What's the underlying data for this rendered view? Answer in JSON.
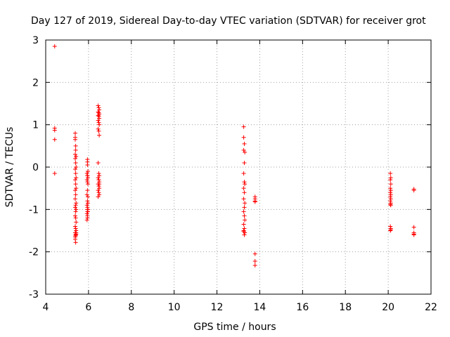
{
  "chart_data": {
    "type": "scatter",
    "title": "Day 127 of 2019, Sidereal Day-to-day VTEC variation (SDTVAR) for receiver grot",
    "xlabel": "GPS time / hours",
    "ylabel": "SDTVAR / TECUs",
    "xlim": [
      4,
      22
    ],
    "ylim": [
      -3,
      3
    ],
    "xticks": [
      4,
      6,
      8,
      10,
      12,
      14,
      16,
      18,
      20,
      22
    ],
    "yticks": [
      -3,
      -2,
      -1,
      0,
      1,
      2,
      3
    ],
    "xtick_labels": [
      "4",
      "6",
      "8",
      "10",
      "12",
      "14",
      "16",
      "18",
      "20",
      "22"
    ],
    "ytick_labels": [
      "-3",
      "-2",
      "-1",
      "0",
      "1",
      "2",
      "3"
    ],
    "grid": true,
    "marker": "+",
    "color": "#ff0000",
    "series": [
      {
        "name": "SDTVAR",
        "x": [
          4.42,
          4.42,
          4.42,
          4.42,
          4.42,
          5.38,
          5.38,
          5.38,
          5.4,
          5.4,
          5.38,
          5.42,
          5.38,
          5.4,
          5.42,
          5.38,
          5.4,
          5.42,
          5.38,
          5.4,
          5.42,
          5.38,
          5.4,
          5.38,
          5.42,
          5.4,
          5.38,
          5.42,
          5.4,
          5.38,
          5.4,
          5.42,
          5.38,
          5.4,
          5.42,
          5.38,
          5.4,
          5.42,
          5.38,
          5.4,
          5.42,
          5.38,
          5.4,
          5.95,
          5.95,
          5.95,
          5.97,
          5.93,
          5.95,
          5.97,
          5.93,
          5.95,
          5.97,
          5.95,
          5.93,
          5.97,
          5.95,
          5.93,
          5.95,
          5.97,
          5.95,
          5.93,
          5.95,
          5.97,
          5.95,
          5.93,
          5.95,
          5.97,
          5.95,
          6.45,
          6.48,
          6.5,
          6.45,
          6.48,
          6.5,
          6.45,
          6.48,
          6.5,
          6.45,
          6.48,
          6.5,
          6.45,
          6.48,
          6.5,
          6.45,
          6.48,
          6.5,
          6.45,
          6.48,
          6.5,
          6.45,
          6.48,
          6.5,
          6.45,
          6.48,
          6.5,
          6.45,
          6.48,
          6.5,
          13.25,
          13.25,
          13.28,
          13.25,
          13.3,
          13.28,
          13.25,
          13.28,
          13.3,
          13.25,
          13.28,
          13.25,
          13.3,
          13.28,
          13.25,
          13.28,
          13.3,
          13.25,
          13.28,
          13.25,
          13.3,
          13.28,
          13.25,
          13.78,
          13.78,
          13.78,
          13.78,
          13.78,
          13.78,
          13.78,
          20.1,
          20.12,
          20.1,
          20.12,
          20.1,
          20.12,
          20.1,
          20.12,
          20.1,
          20.12,
          20.1,
          20.12,
          20.1,
          20.12,
          20.1,
          20.12,
          20.1,
          20.12,
          21.2,
          21.2,
          21.2,
          21.2,
          21.2,
          21.2
        ],
        "y": [
          2.85,
          0.92,
          0.87,
          0.65,
          -0.15,
          0.8,
          0.7,
          0.65,
          0.5,
          0.4,
          0.3,
          0.25,
          0.2,
          0.1,
          0.0,
          -0.05,
          -0.15,
          -0.25,
          -0.3,
          -0.4,
          -0.5,
          -0.55,
          -0.65,
          -0.75,
          -0.85,
          -0.9,
          -0.95,
          -1.0,
          -1.05,
          -1.15,
          -1.2,
          -1.3,
          -1.4,
          -1.45,
          -1.5,
          -1.55,
          -1.6,
          -1.58,
          -1.65,
          -1.62,
          -1.55,
          -1.7,
          -1.78,
          0.18,
          0.12,
          0.05,
          -0.1,
          -0.15,
          -0.2,
          -0.25,
          -0.3,
          -0.35,
          -0.4,
          -0.55,
          -0.65,
          -0.7,
          -0.8,
          -0.9,
          -0.95,
          -1.0,
          -1.05,
          -1.1,
          -1.15,
          -1.05,
          -1.2,
          -1.25,
          -1.0,
          -0.85,
          -0.2,
          1.45,
          1.4,
          1.35,
          1.3,
          1.28,
          1.25,
          1.22,
          1.2,
          1.15,
          1.1,
          1.05,
          1.0,
          0.9,
          0.85,
          0.75,
          0.1,
          -0.15,
          -0.2,
          -0.25,
          -0.3,
          -0.35,
          -0.4,
          -0.45,
          -0.5,
          -0.55,
          -0.6,
          -0.65,
          -0.7,
          -0.3,
          -0.4,
          0.95,
          0.7,
          0.55,
          0.4,
          0.35,
          0.1,
          -0.15,
          -0.35,
          -0.4,
          -0.5,
          -0.6,
          -0.75,
          -0.85,
          -0.95,
          -1.05,
          -1.15,
          -1.25,
          -1.35,
          -1.45,
          -1.5,
          -1.55,
          -1.6,
          -1.52,
          -0.7,
          -0.75,
          -0.8,
          -0.82,
          -2.05,
          -2.22,
          -2.32,
          -0.15,
          -0.25,
          -0.3,
          -0.4,
          -0.5,
          -0.55,
          -0.6,
          -0.65,
          -0.7,
          -0.75,
          -0.8,
          -0.85,
          -0.88,
          -0.9,
          -1.4,
          -1.45,
          -1.5,
          -1.48,
          -0.52,
          -0.55,
          -1.42,
          -1.55,
          -1.58,
          -1.6
        ]
      }
    ]
  }
}
